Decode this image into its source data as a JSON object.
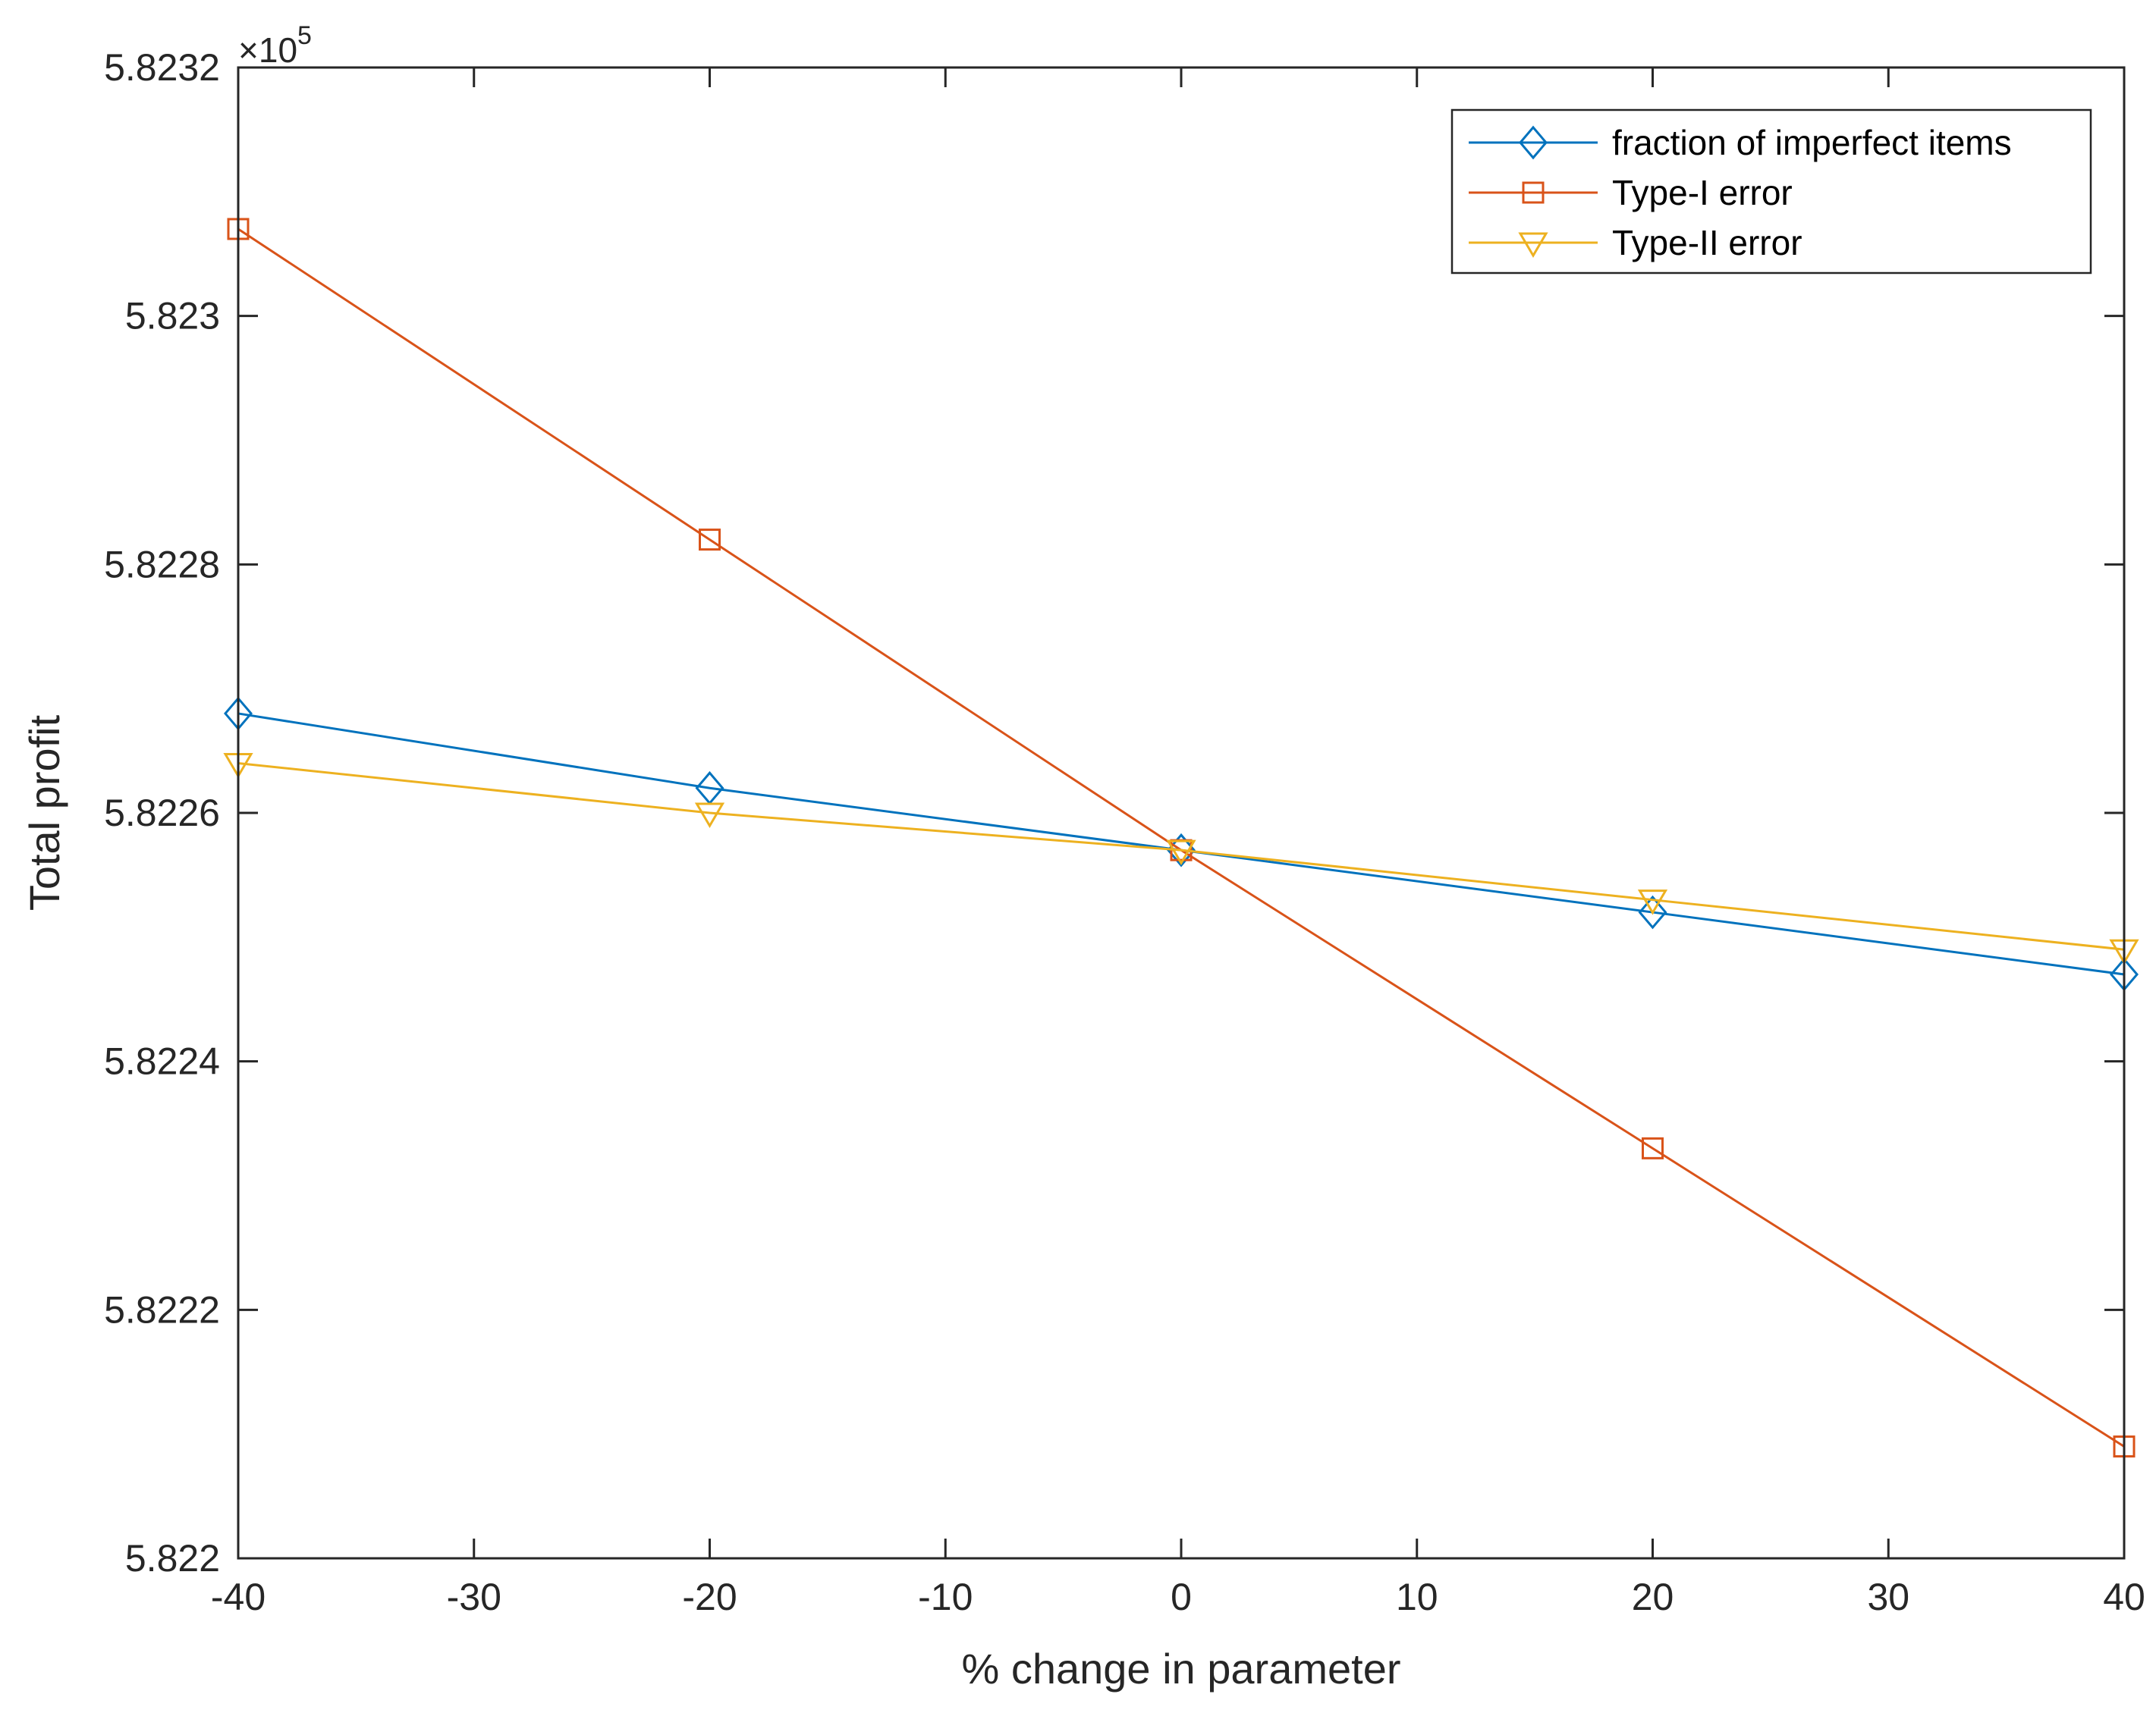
{
  "chart_data": {
    "type": "line",
    "title": "",
    "xlabel": "% change in parameter",
    "ylabel": "Total profit",
    "y_multiplier": {
      "base": "×10",
      "exponent": "5"
    },
    "xlim": [
      -40,
      40
    ],
    "ylim": [
      5.822,
      5.8232
    ],
    "x_ticks": [
      -40,
      -30,
      -20,
      -10,
      0,
      10,
      20,
      30,
      40
    ],
    "x_tick_labels": [
      "-40",
      "-30",
      "-20",
      "-10",
      "0",
      "10",
      "20",
      "30",
      "40"
    ],
    "y_ticks": [
      5.822,
      5.8222,
      5.8224,
      5.8226,
      5.8228,
      5.823,
      5.8232
    ],
    "y_tick_labels": [
      "5.822",
      "5.8222",
      "5.8224",
      "5.8226",
      "5.8228",
      "5.823",
      "5.8232"
    ],
    "grid": false,
    "legend_position": "top-right",
    "x": [
      -40,
      -20,
      0,
      20,
      40
    ],
    "series": [
      {
        "name": "fraction of imperfect items",
        "color": "#0072BD",
        "marker": "diamond",
        "values": [
          5.82268,
          5.82262,
          5.82257,
          5.82252,
          5.82247
        ]
      },
      {
        "name": "Type-I error",
        "color": "#D95319",
        "marker": "square",
        "values": [
          5.82307,
          5.82282,
          5.82257,
          5.82233,
          5.82209
        ]
      },
      {
        "name": "Type-II error",
        "color": "#EDB120",
        "marker": "triangle-down",
        "values": [
          5.82264,
          5.8226,
          5.82257,
          5.82253,
          5.82249
        ]
      }
    ]
  }
}
